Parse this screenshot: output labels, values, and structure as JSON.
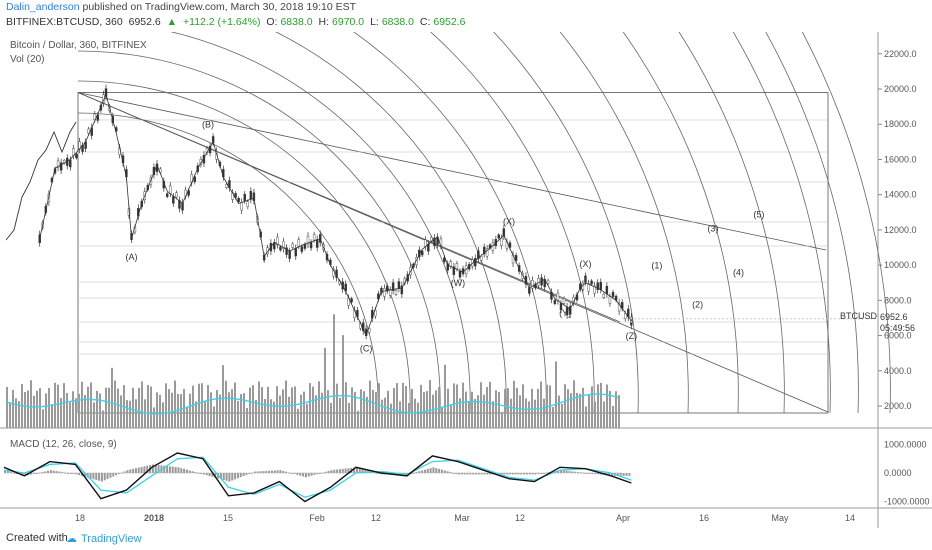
{
  "header": {
    "author": "Dalin_anderson",
    "published": "published on TradingView.com, March 30, 2018 19:10 EST",
    "symbol": "BITFINEX:BTCUSD, 360",
    "last": "6952.6",
    "change": "+112.2 (+1.64%)",
    "open_label": "O:",
    "open": "6838.0",
    "high_label": "H:",
    "high": "6970.0",
    "low_label": "L:",
    "low": "6838.0",
    "close_label": "C:",
    "close": "6952.6"
  },
  "legend": {
    "title": "Bitcoin / Dollar, 360, BITFINEX",
    "vol": "Vol (20)",
    "macd": "MACD (12, 26, close, 9)"
  },
  "price_tags": {
    "symbol": "BTCUSD",
    "price": "6952.6",
    "countdown": "05:49:56"
  },
  "colors": {
    "up": "#2ca02c",
    "accent": "#2f7fd6",
    "volume_ma": "#3fd0e8",
    "macd_line": "#111111",
    "signal_line": "#3fd0e8",
    "histogram": "#999999",
    "grid_lines": "#888888"
  },
  "footer": {
    "created": "Created with",
    "brand": "TradingView"
  },
  "chart_data": {
    "type": "candlestick",
    "price_axis": {
      "ticks": [
        2000,
        4000,
        6000,
        8000,
        10000,
        12000,
        14000,
        16000,
        18000,
        20000,
        22000
      ],
      "tick_labels": [
        "2000.0",
        "4000.0",
        "6000.0",
        "8000.0",
        "10000.0",
        "12000.0",
        "14000.0",
        "16000.0",
        "18000.0",
        "20000.0",
        "22000.0"
      ]
    },
    "time_axis": {
      "labels": [
        "18",
        "2018",
        "15",
        "Feb",
        "12",
        "Mar",
        "12",
        "Apr",
        "16",
        "May",
        "14"
      ]
    },
    "macd_axis": {
      "ticks": [
        1000,
        0,
        -1000
      ],
      "tick_labels": [
        "1000.0000",
        "0.0000",
        "-1000.0000"
      ]
    },
    "price_path": [
      [
        "2017-12-04",
        11500
      ],
      [
        "2017-12-07",
        15500
      ],
      [
        "2017-12-10",
        16000
      ],
      [
        "2017-12-13",
        17000
      ],
      [
        "2017-12-16",
        19000
      ],
      [
        "2017-12-17",
        19700
      ],
      [
        "2017-12-19",
        17500
      ],
      [
        "2017-12-21",
        15000
      ],
      [
        "2017-12-22",
        11500
      ],
      [
        "2017-12-24",
        13500
      ],
      [
        "2017-12-27",
        15700
      ],
      [
        "2017-12-29",
        14200
      ],
      [
        "2018-01-01",
        13500
      ],
      [
        "2018-01-04",
        15500
      ],
      [
        "2018-01-07",
        17000
      ],
      [
        "2018-01-09",
        15000
      ],
      [
        "2018-01-12",
        13500
      ],
      [
        "2018-01-15",
        13800
      ],
      [
        "2018-01-17",
        10500
      ],
      [
        "2018-01-19",
        11300
      ],
      [
        "2018-01-22",
        10800
      ],
      [
        "2018-01-25",
        11200
      ],
      [
        "2018-01-28",
        11500
      ],
      [
        "2018-01-30",
        10000
      ],
      [
        "2018-02-02",
        8500
      ],
      [
        "2018-02-06",
        6000
      ],
      [
        "2018-02-09",
        8500
      ],
      [
        "2018-02-13",
        8700
      ],
      [
        "2018-02-17",
        10900
      ],
      [
        "2018-02-20",
        11600
      ],
      [
        "2018-02-22",
        10000
      ],
      [
        "2018-02-25",
        9600
      ],
      [
        "2018-02-28",
        10400
      ],
      [
        "2018-03-04",
        11400
      ],
      [
        "2018-03-05",
        11700
      ],
      [
        "2018-03-08",
        9800
      ],
      [
        "2018-03-10",
        8700
      ],
      [
        "2018-03-13",
        9200
      ],
      [
        "2018-03-15",
        8100
      ],
      [
        "2018-03-18",
        7500
      ],
      [
        "2018-03-20",
        8700
      ],
      [
        "2018-03-21",
        9000
      ],
      [
        "2018-03-24",
        8600
      ],
      [
        "2018-03-27",
        8000
      ],
      [
        "2018-03-30",
        6840
      ],
      [
        "2018-03-30",
        6952.6
      ]
    ],
    "wave_labels": [
      {
        "text": "(A)",
        "date": "2017-12-22",
        "price": 10300
      },
      {
        "text": "(B)",
        "date": "2018-01-06",
        "price": 17800
      },
      {
        "text": "(C)",
        "date": "2018-02-06",
        "price": 5100
      },
      {
        "text": "(W)",
        "date": "2018-02-24",
        "price": 8800
      },
      {
        "text": "(X)",
        "date": "2018-03-06",
        "price": 12300
      },
      {
        "text": "(X)",
        "date": "2018-03-21",
        "price": 9900
      },
      {
        "text": "(Y)",
        "date": "2018-03-17",
        "price": 7100
      },
      {
        "text": "(Z)",
        "date": "2018-03-30",
        "price": 5800
      },
      {
        "text": "(1)",
        "date": "2018-04-04",
        "price": 9800
      },
      {
        "text": "(2)",
        "date": "2018-04-12",
        "price": 7600
      },
      {
        "text": "(3)",
        "date": "2018-04-15",
        "price": 11900
      },
      {
        "text": "(4)",
        "date": "2018-04-20",
        "price": 9400
      },
      {
        "text": "(5)",
        "date": "2018-04-24",
        "price": 12700
      }
    ],
    "macd": {
      "series": [
        {
          "name": "MACD",
          "values": [
            200,
            -100,
            400,
            300,
            -900,
            -600,
            200,
            700,
            500,
            -800,
            -700,
            -300,
            -1000,
            -500,
            200,
            0,
            -100,
            600,
            400,
            100,
            -200,
            -300,
            200,
            150,
            -100,
            -350
          ]
        },
        {
          "name": "Signal",
          "values": [
            100,
            0,
            300,
            350,
            -600,
            -700,
            -100,
            500,
            550,
            -500,
            -750,
            -400,
            -850,
            -600,
            0,
            50,
            -50,
            400,
            450,
            150,
            -150,
            -250,
            100,
            150,
            0,
            -250
          ]
        }
      ],
      "x_dates": [
        "2017-11-27",
        "2017-12-01",
        "2017-12-06",
        "2017-12-11",
        "2017-12-16",
        "2017-12-21",
        "2017-12-26",
        "2017-12-31",
        "2018-01-05",
        "2018-01-10",
        "2018-01-15",
        "2018-01-20",
        "2018-01-25",
        "2018-01-30",
        "2018-02-04",
        "2018-02-09",
        "2018-02-14",
        "2018-02-19",
        "2018-02-24",
        "2018-03-01",
        "2018-03-06",
        "2018-03-11",
        "2018-03-16",
        "2018-03-21",
        "2018-03-26",
        "2018-03-30"
      ]
    }
  }
}
